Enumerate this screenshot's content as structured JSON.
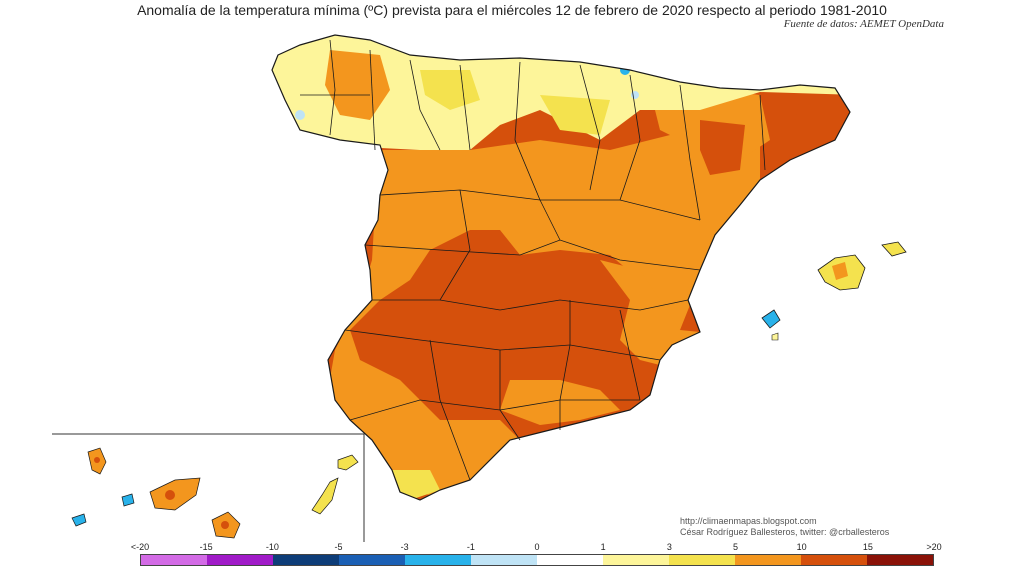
{
  "title": "Anomalía de la temperatura mínima (ºC) prevista para el miércoles 12 de febrero de 2020 respecto al periodo 1981-2010",
  "source": "Fuente de datos: AEMET OpenData",
  "credits": {
    "line1": "http://climaenmapas.blogspot.com",
    "line2": "César Rodríguez Ballesteros, twitter: @crballesteros"
  },
  "legend": {
    "labels": [
      "<-20",
      "-15",
      "-10",
      "-5",
      "-3",
      "-1",
      "0",
      "1",
      "3",
      "5",
      "10",
      "15",
      ">20"
    ],
    "colors": [
      "#d36be6",
      "#a01bc8",
      "#0d3d78",
      "#1a5fb4",
      "#29b2ea",
      "#bfe3f5",
      "#ffffff",
      "#fdf59a",
      "#f4e24e",
      "#f3961e",
      "#d5500c",
      "#8a1208"
    ]
  },
  "colors": {
    "very_warm": "#d5500c",
    "warm": "#f3961e",
    "mild": "#f4e24e",
    "slight": "#fdf59a",
    "cool": "#29b2ea",
    "province_border": "#1a1a1a"
  }
}
